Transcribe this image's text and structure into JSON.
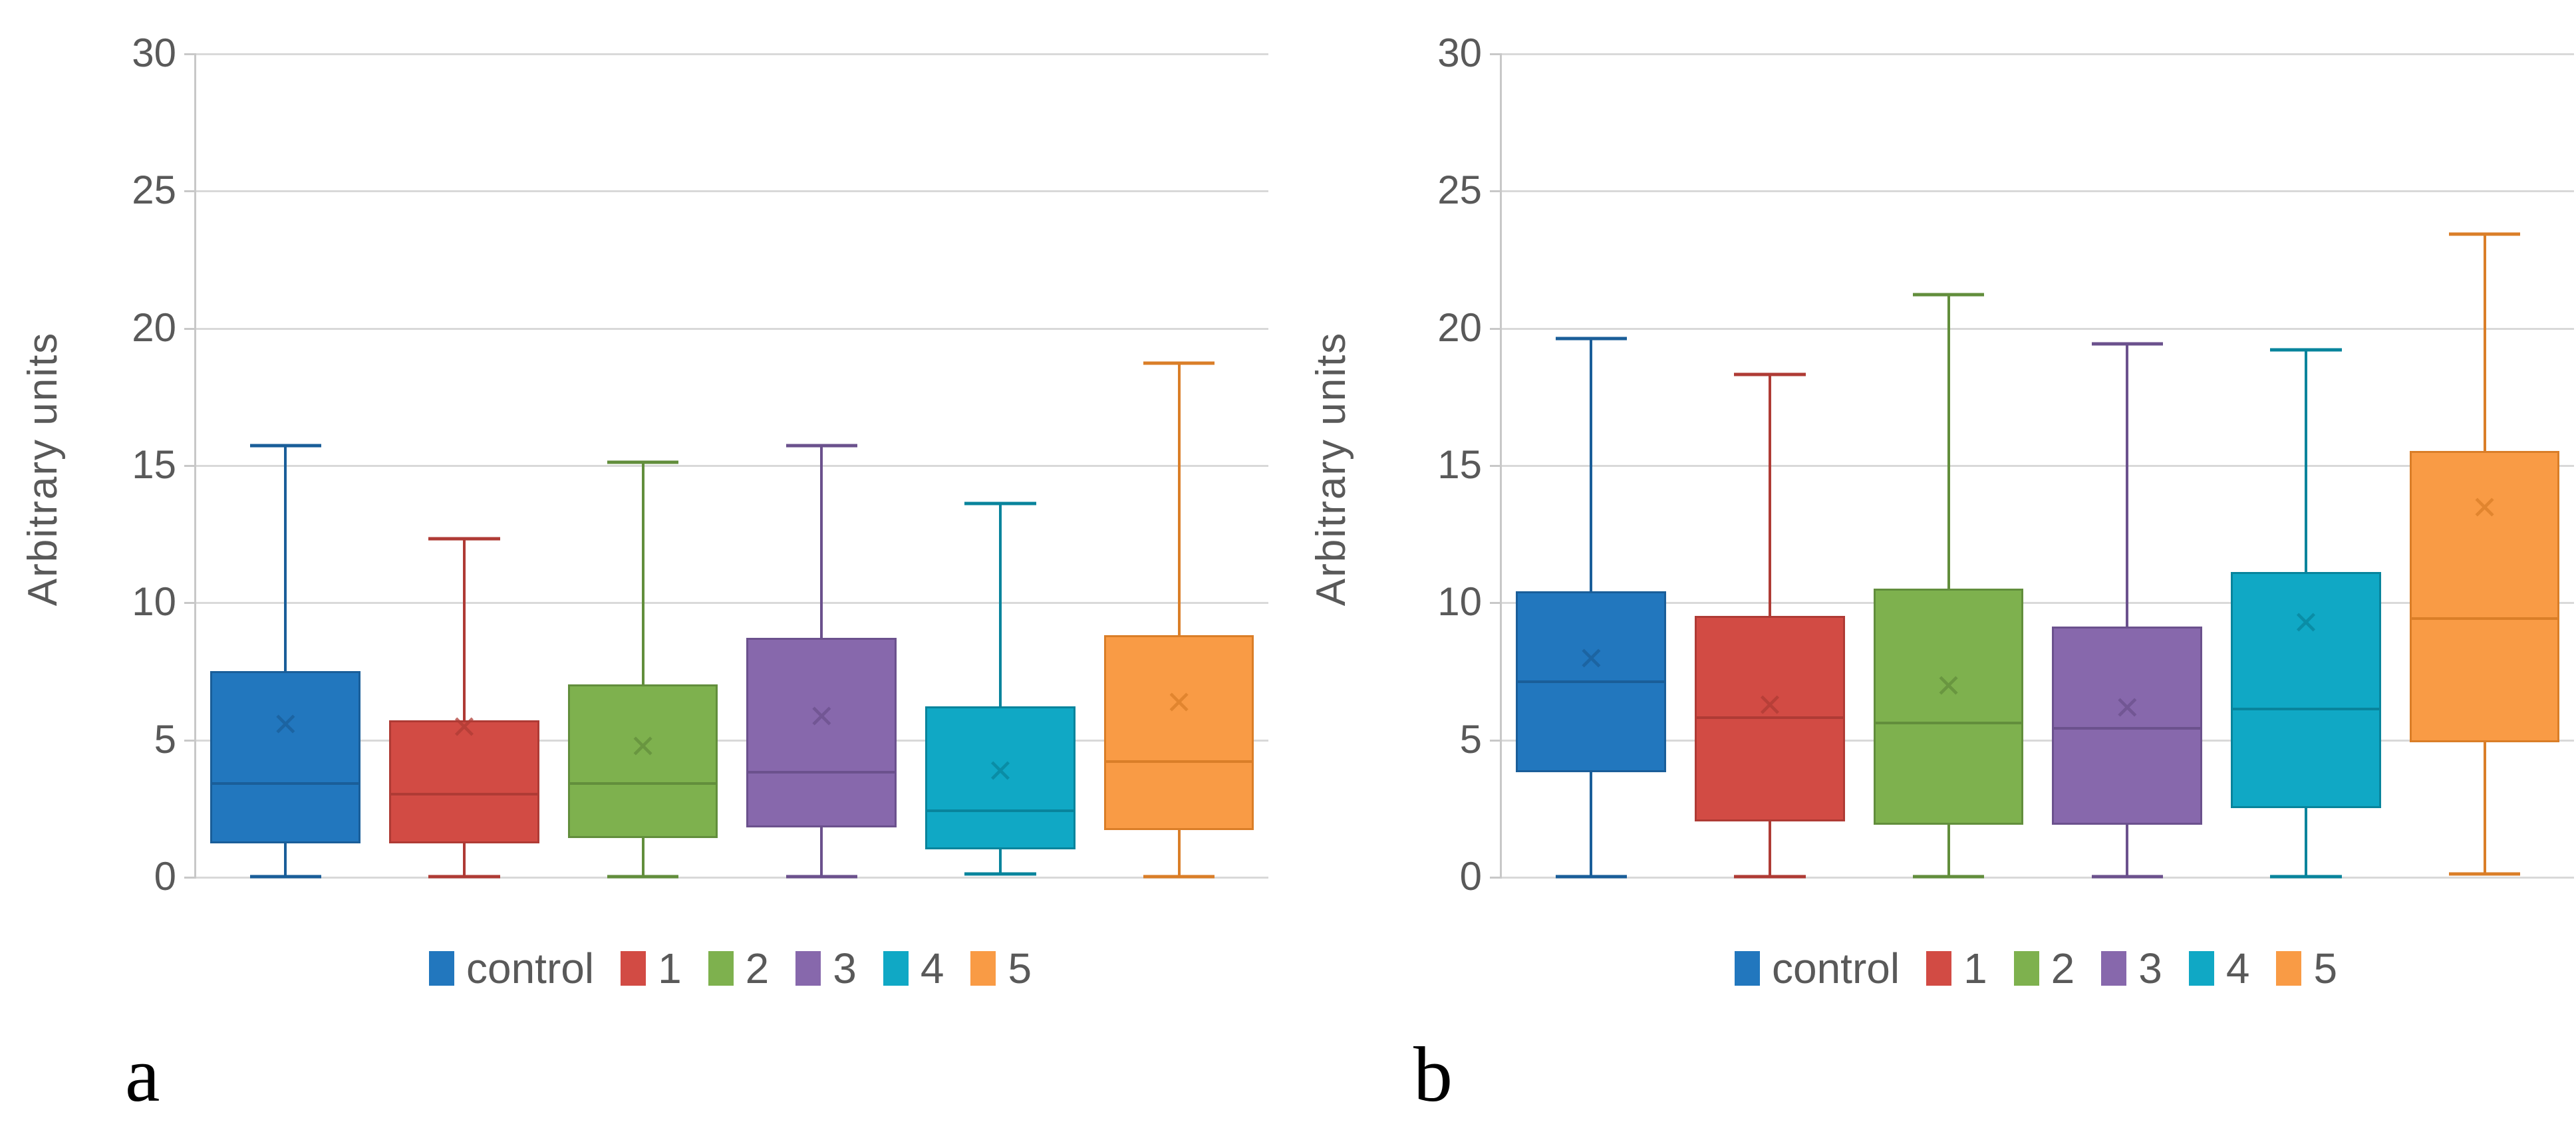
{
  "figure": {
    "ylabel": "Arbitrary units",
    "legend_labels": [
      "control",
      "1",
      "2",
      "3",
      "4",
      "5"
    ]
  },
  "style": {
    "gridline_color": "#d9d9d9",
    "axis_color": "#c8c8c8",
    "tick_text_color": "#595959",
    "legend_text_color": "#595959",
    "panel_letter_color": "#000000",
    "series_colors": [
      {
        "fill": "#2277be",
        "edge": "#1a5e99"
      },
      {
        "fill": "#d24b44",
        "edge": "#af3b35"
      },
      {
        "fill": "#7eb14e",
        "edge": "#628e3c"
      },
      {
        "fill": "#8768ac",
        "edge": "#6b518d"
      },
      {
        "fill": "#10a8c5",
        "edge": "#08849c"
      },
      {
        "fill": "#f99b45",
        "edge": "#da7e28"
      }
    ]
  },
  "chart_data": [
    {
      "type": "boxplot",
      "panel_label": "a",
      "ylabel": "Arbitrary units",
      "ylim": [
        0,
        30
      ],
      "yticks": [
        0,
        5,
        10,
        15,
        20,
        25,
        30
      ],
      "grid": true,
      "legend_position": "bottom",
      "categories": [
        "control",
        "1",
        "2",
        "3",
        "4",
        "5"
      ],
      "series": [
        {
          "name": "control",
          "min": 0,
          "q1": 1.2,
          "median": 3.4,
          "q3": 7.5,
          "max": 15.7,
          "mean": 5.5
        },
        {
          "name": "1",
          "min": 0,
          "q1": 1.2,
          "median": 3.0,
          "q3": 5.7,
          "max": 12.3,
          "mean": 5.4
        },
        {
          "name": "2",
          "min": 0,
          "q1": 1.4,
          "median": 3.4,
          "q3": 7.0,
          "max": 15.1,
          "mean": 4.7
        },
        {
          "name": "3",
          "min": 0,
          "q1": 1.8,
          "median": 3.8,
          "q3": 8.7,
          "max": 15.7,
          "mean": 5.8
        },
        {
          "name": "4",
          "min": 0.1,
          "q1": 1.0,
          "median": 2.4,
          "q3": 6.2,
          "max": 13.6,
          "mean": 3.8
        },
        {
          "name": "5",
          "min": 0,
          "q1": 1.7,
          "median": 4.2,
          "q3": 8.8,
          "max": 18.7,
          "mean": 6.3
        }
      ]
    },
    {
      "type": "boxplot",
      "panel_label": "b",
      "ylabel": "Arbitrary units",
      "ylim": [
        0,
        30
      ],
      "yticks": [
        0,
        5,
        10,
        15,
        20,
        25,
        30
      ],
      "grid": true,
      "legend_position": "bottom",
      "categories": [
        "control",
        "1",
        "2",
        "3",
        "4",
        "5"
      ],
      "series": [
        {
          "name": "control",
          "min": 0,
          "q1": 3.8,
          "median": 7.1,
          "q3": 10.4,
          "max": 19.6,
          "mean": 7.9
        },
        {
          "name": "1",
          "min": 0,
          "q1": 2.0,
          "median": 5.8,
          "q3": 9.5,
          "max": 18.3,
          "mean": 6.2
        },
        {
          "name": "2",
          "min": 0,
          "q1": 1.9,
          "median": 5.6,
          "q3": 10.5,
          "max": 21.2,
          "mean": 6.9
        },
        {
          "name": "3",
          "min": 0,
          "q1": 1.9,
          "median": 5.4,
          "q3": 9.1,
          "max": 19.4,
          "mean": 6.1
        },
        {
          "name": "4",
          "min": 0,
          "q1": 2.5,
          "median": 6.1,
          "q3": 11.1,
          "max": 19.2,
          "mean": 9.2
        },
        {
          "name": "5",
          "min": 0.1,
          "q1": 4.9,
          "median": 9.4,
          "q3": 15.5,
          "max": 23.4,
          "mean": 13.4
        }
      ]
    }
  ]
}
